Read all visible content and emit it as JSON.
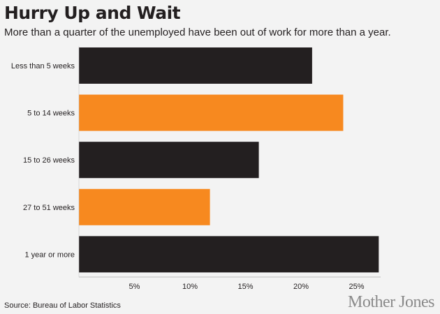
{
  "header": {
    "title": "Hurry Up and Wait",
    "subtitle": "More than a quarter of the unemployed have been out of work for more than a year."
  },
  "footer": {
    "source": "Source: Bureau of Labor Statistics",
    "brand": "Mother Jones"
  },
  "colors": {
    "dark": "#231f20",
    "orange": "#f7891f",
    "axis": "#bdbdbd",
    "background": "#f3f3f3"
  },
  "chart_data": {
    "type": "bar",
    "orientation": "horizontal",
    "title": "Hurry Up and Wait",
    "subtitle": "More than a quarter of the unemployed have been out of work for more than a year.",
    "xlabel": "",
    "ylabel": "",
    "categories": [
      "Less than 5 weeks",
      "5 to 14 weeks",
      "15 to 26 weeks",
      "27 to 51 weeks",
      "1 year or more"
    ],
    "values": [
      21,
      23.8,
      16.2,
      11.8,
      27
    ],
    "bar_colors": [
      "#231f20",
      "#f7891f",
      "#231f20",
      "#f7891f",
      "#231f20"
    ],
    "x_ticks": [
      "5%",
      "10%",
      "15%",
      "20%",
      "25%"
    ],
    "x_tick_values": [
      5,
      10,
      15,
      20,
      25
    ],
    "xlim": [
      0,
      28
    ],
    "grid": false,
    "legend": "none"
  }
}
